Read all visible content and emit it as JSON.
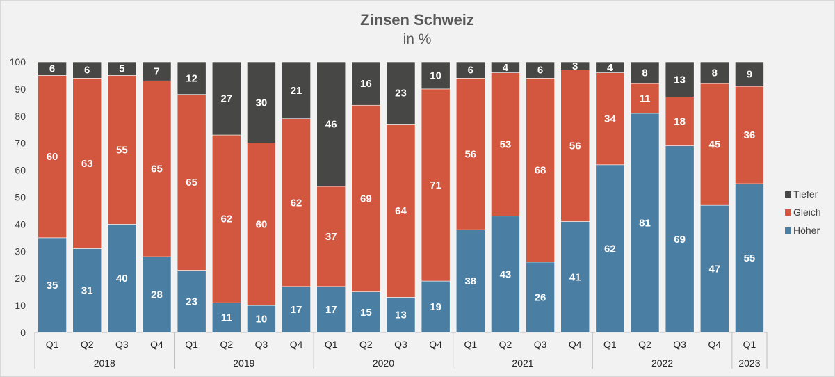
{
  "chart_data": {
    "type": "bar",
    "stacked": true,
    "title": "Zinsen Schweiz",
    "subtitle": "in %",
    "xlabel": "",
    "ylabel": "",
    "ylim": [
      0,
      100
    ],
    "yticks": [
      0,
      10,
      20,
      30,
      40,
      50,
      60,
      70,
      80,
      90,
      100
    ],
    "grid": false,
    "legend_position": "right",
    "categories": [
      "Q1",
      "Q2",
      "Q3",
      "Q4",
      "Q1",
      "Q2",
      "Q3",
      "Q4",
      "Q1",
      "Q2",
      "Q3",
      "Q4",
      "Q1",
      "Q2",
      "Q3",
      "Q4",
      "Q1",
      "Q2",
      "Q3",
      "Q4",
      "Q1"
    ],
    "year_groups": [
      {
        "label": "2018",
        "count": 4
      },
      {
        "label": "2019",
        "count": 4
      },
      {
        "label": "2020",
        "count": 4
      },
      {
        "label": "2021",
        "count": 4
      },
      {
        "label": "2022",
        "count": 4
      },
      {
        "label": "2023",
        "count": 1
      }
    ],
    "series": [
      {
        "name": "Höher",
        "color": "#4a7fa3",
        "values": [
          35,
          31,
          40,
          28,
          23,
          11,
          10,
          17,
          17,
          15,
          13,
          19,
          38,
          43,
          26,
          41,
          62,
          81,
          69,
          47,
          55
        ]
      },
      {
        "name": "Gleich",
        "color": "#d3573f",
        "values": [
          60,
          63,
          55,
          65,
          65,
          62,
          60,
          62,
          37,
          69,
          64,
          71,
          56,
          53,
          68,
          56,
          34,
          11,
          18,
          45,
          36
        ]
      },
      {
        "name": "Tiefer",
        "color": "#474745",
        "values": [
          6,
          6,
          5,
          7,
          12,
          27,
          30,
          21,
          46,
          16,
          23,
          10,
          6,
          4,
          6,
          3,
          4,
          8,
          13,
          8,
          9
        ]
      }
    ]
  }
}
